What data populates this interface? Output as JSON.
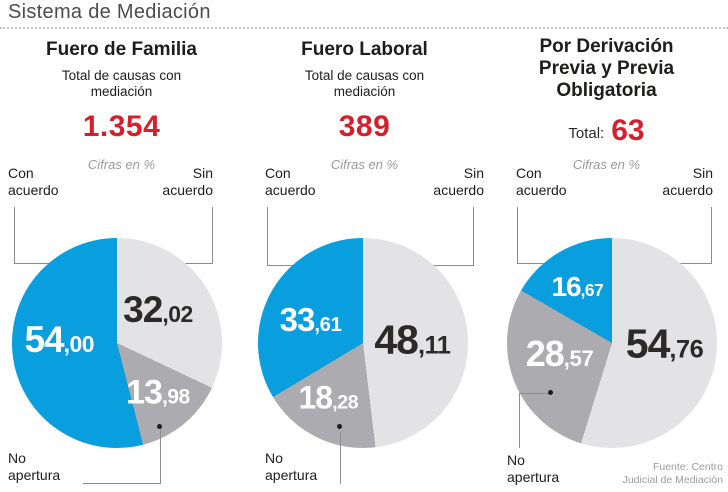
{
  "page": {
    "title": "Sistema de Mediación"
  },
  "source": {
    "line1": "Fuente: Centro",
    "line2": "Judicial de Mediación"
  },
  "colors": {
    "blue": "#099edd",
    "light_gray": "#e3e3e6",
    "mid_gray": "#ababb0",
    "red": "#d4202d",
    "dark_text": "#1d1d1b",
    "leader_gray": "#8c8c8c"
  },
  "charts": [
    {
      "title": "Fuero de Familia",
      "subtitle": "Total de causas con mediación",
      "total": "1.354",
      "units_note": "Cifras en %",
      "legend_left": "Con acuerdo",
      "legend_right": "Sin acuerdo",
      "legend_bottom": "No apertura",
      "slices": {
        "con_acuerdo": {
          "int": "54",
          "dec": ",00"
        },
        "sin_acuerdo": {
          "int": "32",
          "dec": ",02"
        },
        "no_apertura": {
          "int": "13",
          "dec": ",98"
        }
      }
    },
    {
      "title": "Fuero Laboral",
      "subtitle": "Total de causas con mediación",
      "total": "389",
      "units_note": "Cifras en %",
      "legend_left": "Con acuerdo",
      "legend_right": "Sin acuerdo",
      "legend_bottom": "No apertura",
      "slices": {
        "con_acuerdo": {
          "int": "33",
          "dec": ",61"
        },
        "sin_acuerdo": {
          "int": "48",
          "dec": ",11"
        },
        "no_apertura": {
          "int": "18",
          "dec": ",28"
        }
      }
    },
    {
      "title": "Por Derivación Previa y Previa Obligatoria",
      "total_label": "Total:",
      "total": "63",
      "units_note": "Cifras en %",
      "legend_left": "Con acuerdo",
      "legend_right": "Sin acuerdo",
      "legend_bottom": "No apertura",
      "slices": {
        "con_acuerdo": {
          "int": "16",
          "dec": ",67"
        },
        "sin_acuerdo": {
          "int": "54",
          "dec": ",76"
        },
        "no_apertura": {
          "int": "28",
          "dec": ",57"
        }
      }
    }
  ],
  "chart_data": [
    {
      "type": "pie",
      "title": "Fuero de Familia",
      "subtitle": "Total de causas con mediación",
      "total_causas": 1354,
      "units": "Cifras en %",
      "direction": "clockwise",
      "start_angle_deg": 0,
      "slices": [
        {
          "label": "Sin acuerdo",
          "value": 32.02,
          "color": "#e3e3e6"
        },
        {
          "label": "No apertura",
          "value": 13.98,
          "color": "#ababb0"
        },
        {
          "label": "Con acuerdo",
          "value": 54.0,
          "color": "#099edd"
        }
      ]
    },
    {
      "type": "pie",
      "title": "Fuero Laboral",
      "subtitle": "Total de causas con mediación",
      "total_causas": 389,
      "units": "Cifras en %",
      "direction": "clockwise",
      "start_angle_deg": 0,
      "slices": [
        {
          "label": "Sin acuerdo",
          "value": 48.11,
          "color": "#e3e3e6"
        },
        {
          "label": "No apertura",
          "value": 18.28,
          "color": "#ababb0"
        },
        {
          "label": "Con acuerdo",
          "value": 33.61,
          "color": "#099edd"
        }
      ]
    },
    {
      "type": "pie",
      "title": "Por Derivación Previa y Previa Obligatoria",
      "total_causas": 63,
      "units": "Cifras en %",
      "direction": "clockwise",
      "start_angle_deg": 0,
      "slices": [
        {
          "label": "Sin acuerdo",
          "value": 54.76,
          "color": "#e3e3e6"
        },
        {
          "label": "No apertura",
          "value": 28.57,
          "color": "#ababb0"
        },
        {
          "label": "Con acuerdo",
          "value": 16.67,
          "color": "#099edd"
        }
      ]
    }
  ]
}
